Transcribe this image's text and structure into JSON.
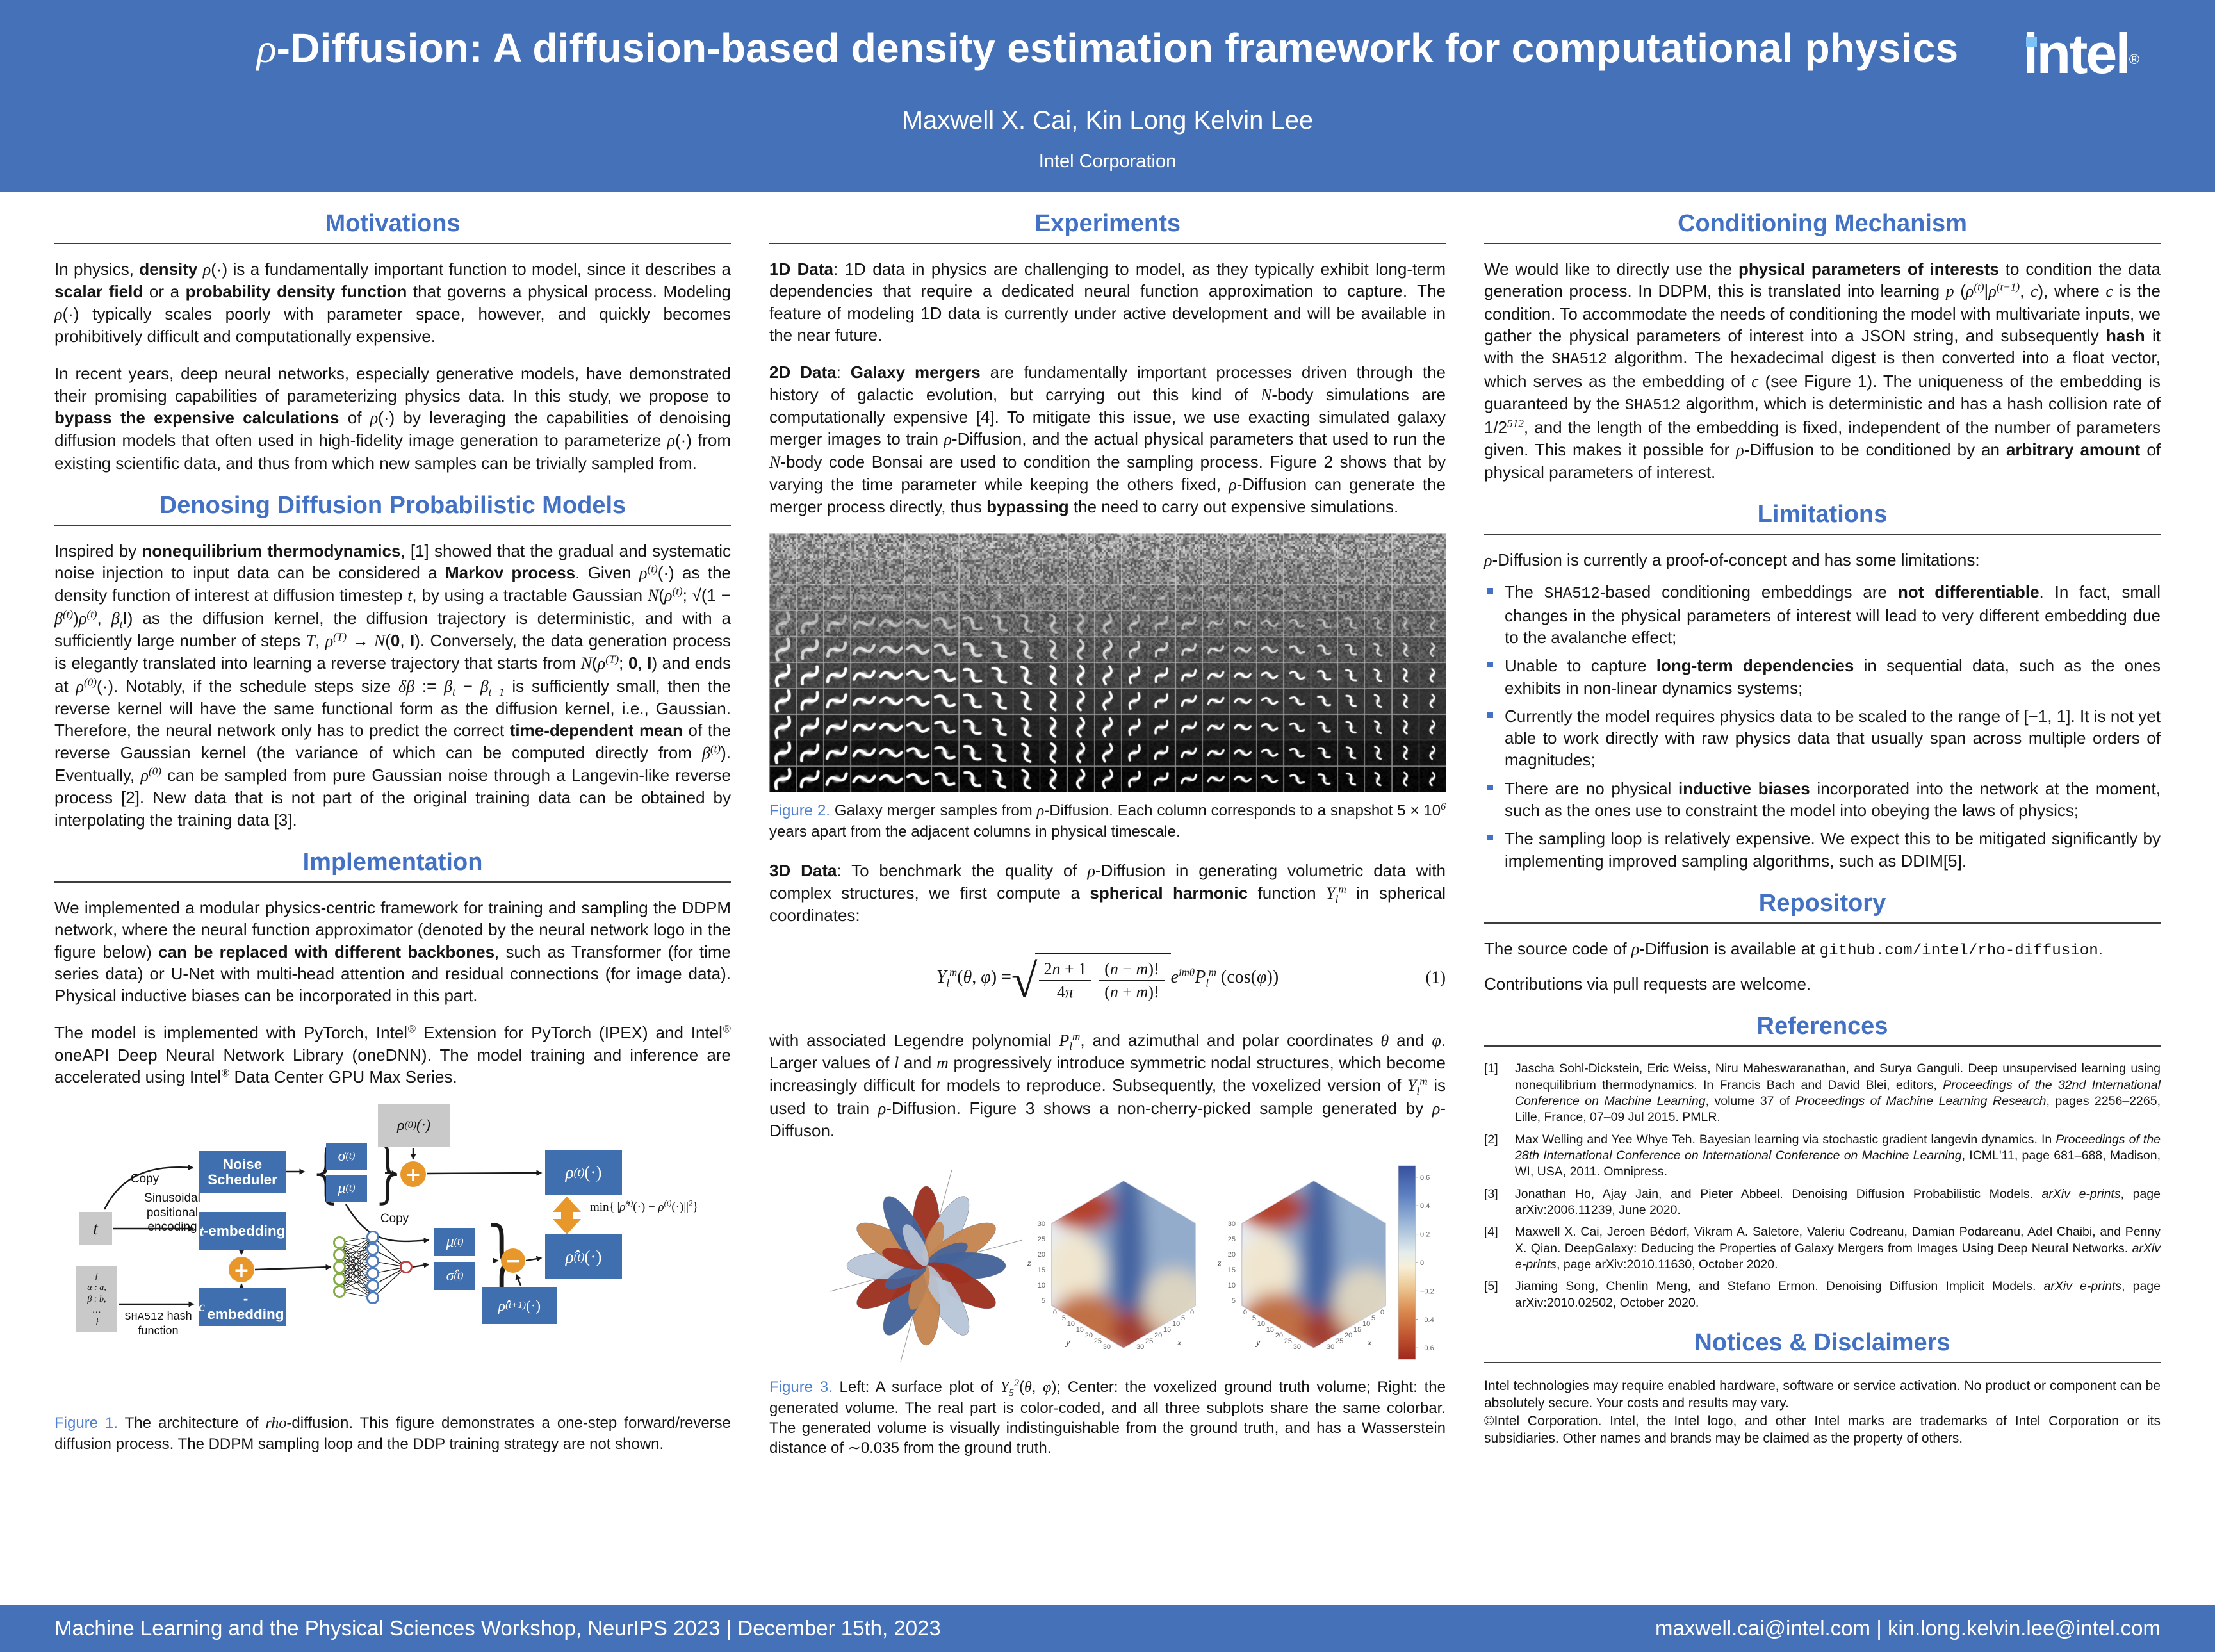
{
  "colors": {
    "header_bg": "#4471b8",
    "accent": "#4372c4",
    "figure_label": "#4e80d1",
    "box_blue": "#3f6fae",
    "orange": "#e8982a",
    "gray_box": "#c9c9c9",
    "intel_dot": "#7cc2f7"
  },
  "header": {
    "title": "*ρ*-Diffusion: A diffusion-based density estimation framework for computational physics",
    "authors": "Maxwell X. Cai, Kin Long Kelvin Lee",
    "affiliation": "Intel Corporation",
    "logo": "intel",
    "logo_r": "®"
  },
  "col1": {
    "motivations": {
      "heading": "Motivations",
      "p1": "In physics, **density** *ρ*(·) is a fundamentally important function to model, since it describes a **scalar field** or a **probability density function** that governs a physical process. Modeling *ρ*(·) typically scales poorly with parameter space, however, and quickly becomes prohibitively difficult and computationally expensive.",
      "p2": "In recent years, deep neural networks, especially generative models, have demonstrated their promising capabilities of parameterizing physics data. In this study, we propose to **bypass the expensive calculations** of *ρ*(·) by leveraging the capabilities of denoising diffusion models that often used in high-fidelity image generation to parameterize *ρ*(·) from existing scientific data, and thus from which new samples can be trivially sampled from."
    },
    "ddpm": {
      "heading": "Denosing Diffusion Probabilistic Models",
      "p1": "Inspired by **nonequilibrium thermodynamics**, [1] showed that the gradual and systematic noise injection to input data can be considered a **Markov process**. Given *ρ*^{(t)}(·) as the density function of interest at diffusion timestep *t*, by using a tractable Gaussian *N*(*ρ*^{(t)}; √(1 − *β*^{(t)})*ρ*^{(t)}, *β*_{t}**I**) as the diffusion kernel, the diffusion trajectory is deterministic, and with a sufficiently large number of steps *T*, *ρ*^{(T)} → *N*(**0**, **I**). Conversely, the data generation process is elegantly translated into learning a reverse trajectory that starts from *N*(*ρ*^{(T)}; **0**, **I**) and ends at *ρ*^{(0)}(·). Notably, if the schedule steps size *δβ* := *β*_{t} − *β*_{t−1} is sufficiently small, then the reverse kernel will have the same functional form as the diffusion kernel, i.e., Gaussian. Therefore, the neural network only has to predict the correct **time-dependent mean** of the reverse Gaussian kernel (the variance of which can be computed directly from *β*^{(t)}). Eventually, *ρ*^{(0)} can be sampled from pure Gaussian noise through a Langevin-like reverse process [2]. New data that is not part of the original training data can be obtained by interpolating the training data [3]."
    },
    "implementation": {
      "heading": "Implementation",
      "p1": "We implemented a modular physics-centric framework for training and sampling the DDPM network, where the neural function approximator (denoted by the neural network logo in the figure below) **can be replaced with different backbones**, such as Transformer (for time series data) or U-Net with multi-head attention and residual connections (for image data). Physical inductive biases can be incorporated in this part.",
      "p2": "The model is implemented with PyTorch, Intel^{®} Extension for PyTorch (IPEX) and Intel^{®} oneAPI Deep Neural Network Library (oneDNN). The model training and inference are accelerated using Intel^{®} Data Center GPU Max Series."
    },
    "figure1": {
      "caption_label": "Figure 1.",
      "caption": " The architecture of *rho*-diffusion. This figure demonstrates a one-step forward/reverse diffusion process. The DDPM sampling loop and the DDP training strategy are not shown.",
      "labels": {
        "rho0": "*ρ*^{(0)}(·)",
        "noise_scheduler": "Noise Scheduler",
        "sigma_t": "*σ*^{(t)}",
        "mu_t": "*μ*^{(t)}",
        "rho_t": "*ρ*^{(t)}(·)",
        "t_box": "t",
        "copy1": "Copy",
        "copy2": "Copy",
        "sinusoidal": "Sinusoidal\npositional\nencoding",
        "t_embedding": "*t*-embedding",
        "c_embedding": "*c*-embedding",
        "mu_t2": "*μ*^{(t)}",
        "sigma_hat_t": "*σ̂*^{(t)}",
        "rho_hat_t": "*ρ̂*^{(t)}(·)",
        "rho_hat_t1": "*ρ̂*^{(t+1)}(·)",
        "min_formula": "min{||*ρ̂*^{(t)}(·) − *ρ*^{(t)}(·)||^{2}}",
        "json_box": "{\nα : a,\nβ : b,\n…\n}",
        "sha_label": "`SHA512` hash\nfunction",
        "plus": "+",
        "minus": "−",
        "brace_l": "{",
        "brace_r": "}",
        "brace_r2": "}"
      }
    }
  },
  "col2": {
    "experiments": {
      "heading": "Experiments",
      "p_1d": "**1D Data**: 1D data in physics are challenging to model, as they typically exhibit long-term dependencies that require a dedicated neural function approximation to capture. The feature of modeling 1D data is currently under active development and will be available in the near future.",
      "p_2d": "**2D Data**: **Galaxy mergers** are fundamentally important processes driven through the history of galactic evolution, but carrying out this kind of *N*-body simulations are computationally expensive [4]. To mitigate this issue, we use exacting simulated galaxy merger images to train *ρ*-Diffusion, and the actual physical parameters that used to run the *N*-body code Bonsai are used to condition the sampling process. Figure 2 shows that by varying the time parameter while keeping the others fixed, *ρ*-Diffusion can generate the merger process directly, thus **bypassing** the need to carry out expensive simulations."
    },
    "figure2": {
      "rows": 10,
      "cols": 25,
      "caption_label": "Figure 2.",
      "caption": " Galaxy merger samples from *ρ*-Diffusion. Each column corresponds to a snapshot 5 × 10^{6} years apart from the adjacent columns in physical timescale."
    },
    "p_3d": "**3D Data**: To benchmark the quality of *ρ*-Diffusion in generating volumetric data with complex structures, we first compute a **spherical harmonic** function *Y*_{l}^{m} in spherical coordinates:",
    "eq": {
      "lhs": "*Y*_{l}^{m}(*θ*, *φ*) = ",
      "num1": "2*n* + 1",
      "den1": "4*π*",
      "num2": "(*n* − *m*)!",
      "den2": "(*n* + *m*)!",
      "tail": "*e*^{imθ}*P*_{l}^{m} (cos(*φ*))",
      "number": "(1)"
    },
    "p_after_eq": "with associated Legendre polynomial *P*_{l}^{m}, and azimuthal and polar coordinates *θ* and *φ*. Larger values of *l* and *m* progressively introduce symmetric nodal structures, which become increasingly difficult for models to reproduce. Subsequently, the voxelized version of *Y*_{l}^{m} is used to train *ρ*-Diffusion. Figure 3 shows a non-cherry-picked sample generated by *ρ*-Diffuson.",
    "figure3": {
      "caption_label": "Figure 3.",
      "caption": " Left: A surface plot of *Y*_{5}^{2}(*θ*, *φ*); Center: the voxelized ground truth volume; Right: the generated volume. The real part is color-coded, and all three subplots share the same colorbar. The generated volume is visually indistinguishable from the ground truth, and has a Wasserstein distance of ∼0.035 from the ground truth.",
      "colorbar_ticks": [
        "0.6",
        "0.4",
        "0.2",
        "0",
        "−0.2",
        "−0.4",
        "−0.6"
      ],
      "z_ticks": [
        "30",
        "25",
        "20",
        "15",
        "10",
        "5"
      ],
      "xy_ticks": [
        "0",
        "5",
        "10",
        "15",
        "20",
        "25",
        "30"
      ],
      "axis_x": "x",
      "axis_y": "y",
      "axis_z": "z",
      "palette": [
        "#9e3120",
        "#b9c6d8",
        "#c5854f",
        "#44639a"
      ]
    }
  },
  "col3": {
    "conditioning": {
      "heading": "Conditioning Mechanism",
      "p1": "We would like to directly use the **physical parameters of interests** to condition the data generation process. In DDPM, this is translated into learning *p* (*ρ*^{(t)}|*ρ*^{(t−1)}, *c*), where *c* is the condition. To accommodate the needs of conditioning the model with multivariate inputs, we gather the physical parameters of interest into a JSON string, and subsequently **hash** it with the `SHA512` algorithm. The hexadecimal digest is then converted into a float vector, which serves as the embedding of *c* (see Figure 1). The uniqueness of the embedding is guaranteed by the `SHA512` algorithm, which is deterministic and has a hash collision rate of 1/2^{512}, and the length of the embedding is fixed, independent of the number of parameters given. This makes it possible for *ρ*-Diffusion to be conditioned by an **arbitrary amount** of physical parameters of interest."
    },
    "limitations": {
      "heading": "Limitations",
      "intro": "*ρ*-Diffusion is currently a proof-of-concept and has some limitations:",
      "items": [
        "The `SHA512`-based conditioning embeddings are **not differentiable**. In fact, small changes in the physical parameters of interest will lead to very different embedding due to the avalanche effect;",
        "Unable to capture **long-term dependencies** in sequential data, such as the ones exhibits in non-linear dynamics systems;",
        "Currently the model requires physics data to be scaled to the range of [−1, 1]. It is not yet able to work directly with raw physics data that usually span across multiple orders of magnitudes;",
        "There are no physical **inductive biases** incorporated into the network at the moment, such as the ones use to constraint the model into obeying the laws of physics;",
        "The sampling loop is relatively expensive. We expect this to be mitigated significantly by implementing improved sampling algorithms, such as DDIM[5]."
      ]
    },
    "repository": {
      "heading": "Repository",
      "p1": "The source code of *ρ*-Diffusion is available at `github.com/intel/rho-diffusion`.",
      "p2": "Contributions via pull requests are welcome."
    },
    "references": {
      "heading": "References",
      "items": [
        {
          "n": "[1]",
          "text": "Jascha Sohl-Dickstein, Eric Weiss, Niru Maheswaranathan, and Surya Ganguli. Deep unsupervised learning using nonequilibrium thermodynamics. In Francis Bach and David Blei, editors, ~Proceedings of the 32nd International Conference on Machine Learning~, volume 37 of ~Proceedings of Machine Learning Research~, pages 2256–2265, Lille, France, 07–09 Jul 2015. PMLR."
        },
        {
          "n": "[2]",
          "text": "Max Welling and Yee Whye Teh. Bayesian learning via stochastic gradient langevin dynamics. In ~Proceedings of the 28th International Conference on International Conference on Machine Learning~, ICML'11, page 681–688, Madison, WI, USA, 2011. Omnipress."
        },
        {
          "n": "[3]",
          "text": "Jonathan Ho, Ajay Jain, and Pieter Abbeel. Denoising Diffusion Probabilistic Models. ~arXiv e-prints~, page arXiv:2006.11239, June 2020."
        },
        {
          "n": "[4]",
          "text": "Maxwell X. Cai, Jeroen Bédorf, Vikram A. Saletore, Valeriu Codreanu, Damian Podareanu, Adel Chaibi, and Penny X. Qian. DeepGalaxy: Deducing the Properties of Galaxy Mergers from Images Using Deep Neural Networks. ~arXiv e-prints~, page arXiv:2010.11630, October 2020."
        },
        {
          "n": "[5]",
          "text": "Jiaming Song, Chenlin Meng, and Stefano Ermon. Denoising Diffusion Implicit Models. ~arXiv e-prints~, page arXiv:2010.02502, October 2020."
        }
      ]
    },
    "notices": {
      "heading": "Notices & Disclaimers",
      "p1": "Intel technologies may require enabled hardware, software or service activation. No product or component can be absolutely secure. Your costs and results may vary.",
      "p2": "©Intel Corporation. Intel, the Intel logo, and other Intel marks are trademarks of Intel Corporation or its subsidiaries. Other names and brands may be claimed as the property of others."
    }
  },
  "footer": {
    "left": "Machine Learning and the Physical Sciences Workshop, NeurIPS 2023 | December 15th, 2023",
    "right": "maxwell.cai@intel.com | kin.long.kelvin.lee@intel.com"
  }
}
